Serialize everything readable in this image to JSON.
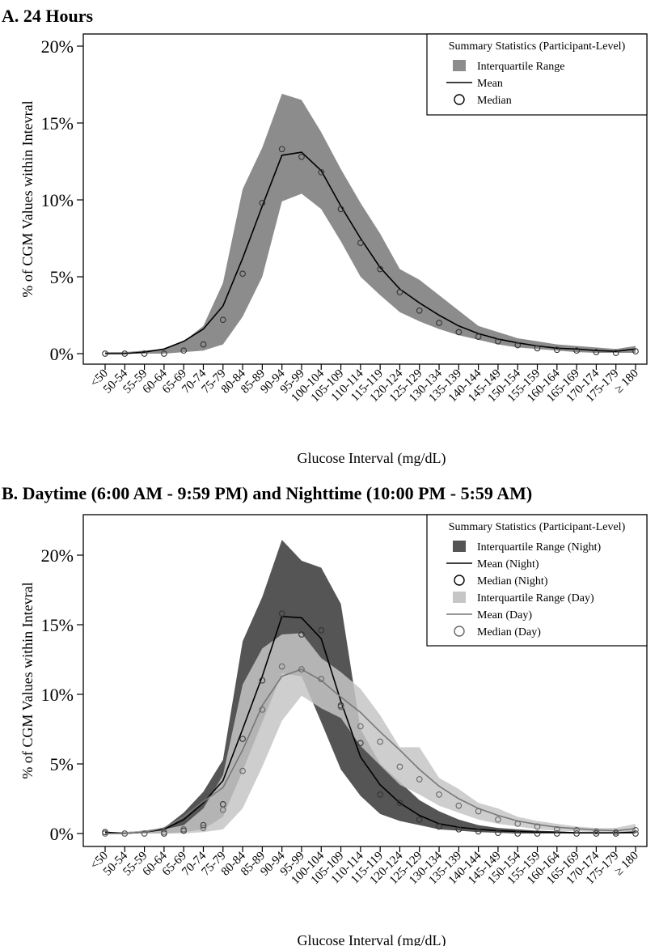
{
  "chart_data": [
    {
      "type": "area",
      "title": "A. 24 Hours",
      "xlabel": "Glucose Interval (mg/dL)",
      "ylabel": "% of CGM Values within Intevral",
      "ylim": [
        0,
        20
      ],
      "yticks": [
        "0%",
        "5%",
        "10%",
        "15%",
        "20%"
      ],
      "categories": [
        "<50",
        "50-54",
        "55-59",
        "60-64",
        "65-69",
        "70-74",
        "75-79",
        "80-84",
        "85-89",
        "90-94",
        "95-99",
        "100-104",
        "105-109",
        "110-114",
        "115-119",
        "120-124",
        "125-129",
        "130-134",
        "135-139",
        "140-144",
        "145-149",
        "150-154",
        "155-159",
        "160-164",
        "165-169",
        "170-174",
        "175-179",
        "≥ 180"
      ],
      "legend": {
        "title": "Summary Statistics (Participant-Level)",
        "position": "top-right",
        "items": [
          "Interquartile Range",
          "Mean",
          "Median"
        ]
      },
      "series": [
        {
          "name": "Interquartile Range",
          "kind": "band",
          "color": "#8c8c8c",
          "lower": [
            0,
            0,
            0,
            0,
            0.1,
            0.2,
            0.6,
            2.4,
            5.0,
            9.9,
            10.4,
            9.4,
            7.3,
            5.0,
            3.8,
            2.7,
            2.1,
            1.6,
            1.2,
            0.9,
            0.6,
            0.4,
            0.3,
            0.2,
            0.1,
            0.05,
            0.05,
            0.05
          ],
          "upper": [
            0.1,
            0.1,
            0.2,
            0.3,
            0.8,
            1.8,
            4.6,
            10.7,
            13.4,
            16.9,
            16.5,
            14.4,
            12.0,
            9.8,
            7.8,
            5.5,
            4.8,
            3.8,
            2.8,
            1.8,
            1.4,
            1.0,
            0.8,
            0.6,
            0.5,
            0.4,
            0.3,
            0.5
          ]
        },
        {
          "name": "Mean",
          "kind": "line",
          "color": "#000000",
          "values": [
            0,
            0,
            0.1,
            0.3,
            0.8,
            1.6,
            3.1,
            6.2,
            9.6,
            12.9,
            13.1,
            11.9,
            9.6,
            7.5,
            5.6,
            4.2,
            3.3,
            2.5,
            1.8,
            1.3,
            0.95,
            0.7,
            0.5,
            0.35,
            0.3,
            0.2,
            0.15,
            0.3
          ]
        },
        {
          "name": "Median",
          "kind": "points",
          "color": "#ffffff",
          "values": [
            0,
            0,
            0,
            0,
            0.2,
            0.6,
            2.2,
            5.2,
            9.8,
            13.3,
            12.8,
            11.8,
            9.4,
            7.2,
            5.5,
            4.0,
            2.8,
            2.0,
            1.4,
            1.1,
            0.8,
            0.55,
            0.35,
            0.25,
            0.2,
            0.1,
            0.05,
            0.15
          ]
        }
      ]
    },
    {
      "type": "area",
      "title": "B. Daytime (6:00 AM - 9:59 PM) and Nighttime (10:00 PM - 5:59 AM)",
      "xlabel": "Glucose Interval (mg/dL)",
      "ylabel": "% of CGM Values within Intevral",
      "ylim": [
        0,
        20
      ],
      "yticks": [
        "0%",
        "5%",
        "10%",
        "15%",
        "20%"
      ],
      "categories": [
        "<50",
        "50-54",
        "55-59",
        "60-64",
        "65-69",
        "70-74",
        "75-79",
        "80-84",
        "85-89",
        "90-94",
        "95-99",
        "100-104",
        "105-109",
        "110-114",
        "115-119",
        "120-124",
        "125-129",
        "130-134",
        "135-139",
        "140-144",
        "145-149",
        "150-154",
        "155-159",
        "160-164",
        "165-169",
        "170-174",
        "175-179",
        "≥ 180"
      ],
      "legend": {
        "title": "Summary Statistics (Participant-Level)",
        "position": "top-right",
        "items": [
          "Interquartile Range (Night)",
          "Mean (Night)",
          "Median (Night)",
          "Interquartile Range (Day)",
          "Mean (Day)",
          "Median (Day)"
        ]
      },
      "series": [
        {
          "name": "Interquartile Range (Night)",
          "kind": "band",
          "color": "#555555",
          "lower": [
            0,
            0,
            0,
            0,
            0.1,
            0.3,
            1.2,
            4.5,
            8.0,
            11.5,
            11.3,
            8.0,
            4.6,
            2.7,
            1.4,
            0.9,
            0.6,
            0.3,
            0.2,
            0.1,
            0.05,
            0,
            0,
            0,
            0,
            0,
            0,
            0
          ],
          "upper": [
            0.1,
            0.1,
            0.2,
            0.4,
            1.5,
            3.0,
            5.3,
            13.8,
            17.0,
            21.1,
            19.6,
            19.1,
            16.5,
            7.5,
            5.0,
            3.7,
            2.4,
            1.6,
            1.0,
            0.6,
            0.4,
            0.3,
            0.2,
            0.15,
            0.1,
            0.1,
            0.1,
            0.2
          ]
        },
        {
          "name": "Mean (Night)",
          "kind": "line",
          "color": "#000000",
          "values": [
            0.1,
            0,
            0.1,
            0.3,
            1.0,
            2.2,
            3.8,
            7.5,
            11.3,
            15.6,
            15.5,
            14.0,
            9.5,
            5.5,
            3.5,
            2.2,
            1.3,
            0.7,
            0.45,
            0.3,
            0.2,
            0.15,
            0.1,
            0.1,
            0.05,
            0.05,
            0.05,
            0.1
          ]
        },
        {
          "name": "Median (Night)",
          "kind": "points",
          "color": "#ffffff",
          "values": [
            0.1,
            0,
            0,
            0,
            0.2,
            0.6,
            2.1,
            6.8,
            11.0,
            15.8,
            14.3,
            14.6,
            9.2,
            6.5,
            2.8,
            2.2,
            1.0,
            0.5,
            0.3,
            0.15,
            0.05,
            0,
            0,
            0,
            0,
            0,
            0,
            0
          ]
        },
        {
          "name": "Interquartile Range (Day)",
          "kind": "band",
          "color": "#c6c6c6",
          "lower": [
            0,
            0,
            0,
            0,
            0,
            0.1,
            0.3,
            1.8,
            4.8,
            8.1,
            9.9,
            9.0,
            8.3,
            6.3,
            4.9,
            3.5,
            2.8,
            2.0,
            1.5,
            1.0,
            0.7,
            0.5,
            0.3,
            0.2,
            0.15,
            0.1,
            0.05,
            0.1
          ],
          "upper": [
            0.1,
            0.1,
            0.2,
            0.3,
            0.6,
            1.8,
            4.2,
            10.7,
            13.3,
            14.3,
            14.4,
            12.6,
            11.6,
            10.4,
            8.5,
            6.2,
            6.2,
            4.0,
            3.2,
            2.2,
            1.8,
            1.2,
            0.9,
            0.7,
            0.5,
            0.4,
            0.4,
            0.7
          ]
        },
        {
          "name": "Mean (Day)",
          "kind": "line",
          "color": "#777777",
          "values": [
            0,
            0,
            0.1,
            0.4,
            1.2,
            2.3,
            3.3,
            6.0,
            9.2,
            11.3,
            11.8,
            11.0,
            9.8,
            8.7,
            7.3,
            6.0,
            4.6,
            3.4,
            2.5,
            1.8,
            1.3,
            0.9,
            0.65,
            0.45,
            0.35,
            0.25,
            0.2,
            0.35
          ]
        },
        {
          "name": "Median (Day)",
          "kind": "points",
          "color": "#ffffff",
          "values": [
            0,
            0,
            0,
            0.1,
            0.3,
            0.4,
            1.7,
            4.5,
            8.9,
            12.0,
            11.8,
            11.1,
            9.1,
            7.7,
            6.6,
            4.8,
            3.9,
            2.8,
            2.0,
            1.6,
            1.0,
            0.7,
            0.5,
            0.3,
            0.25,
            0.15,
            0.1,
            0.25
          ]
        }
      ]
    }
  ]
}
